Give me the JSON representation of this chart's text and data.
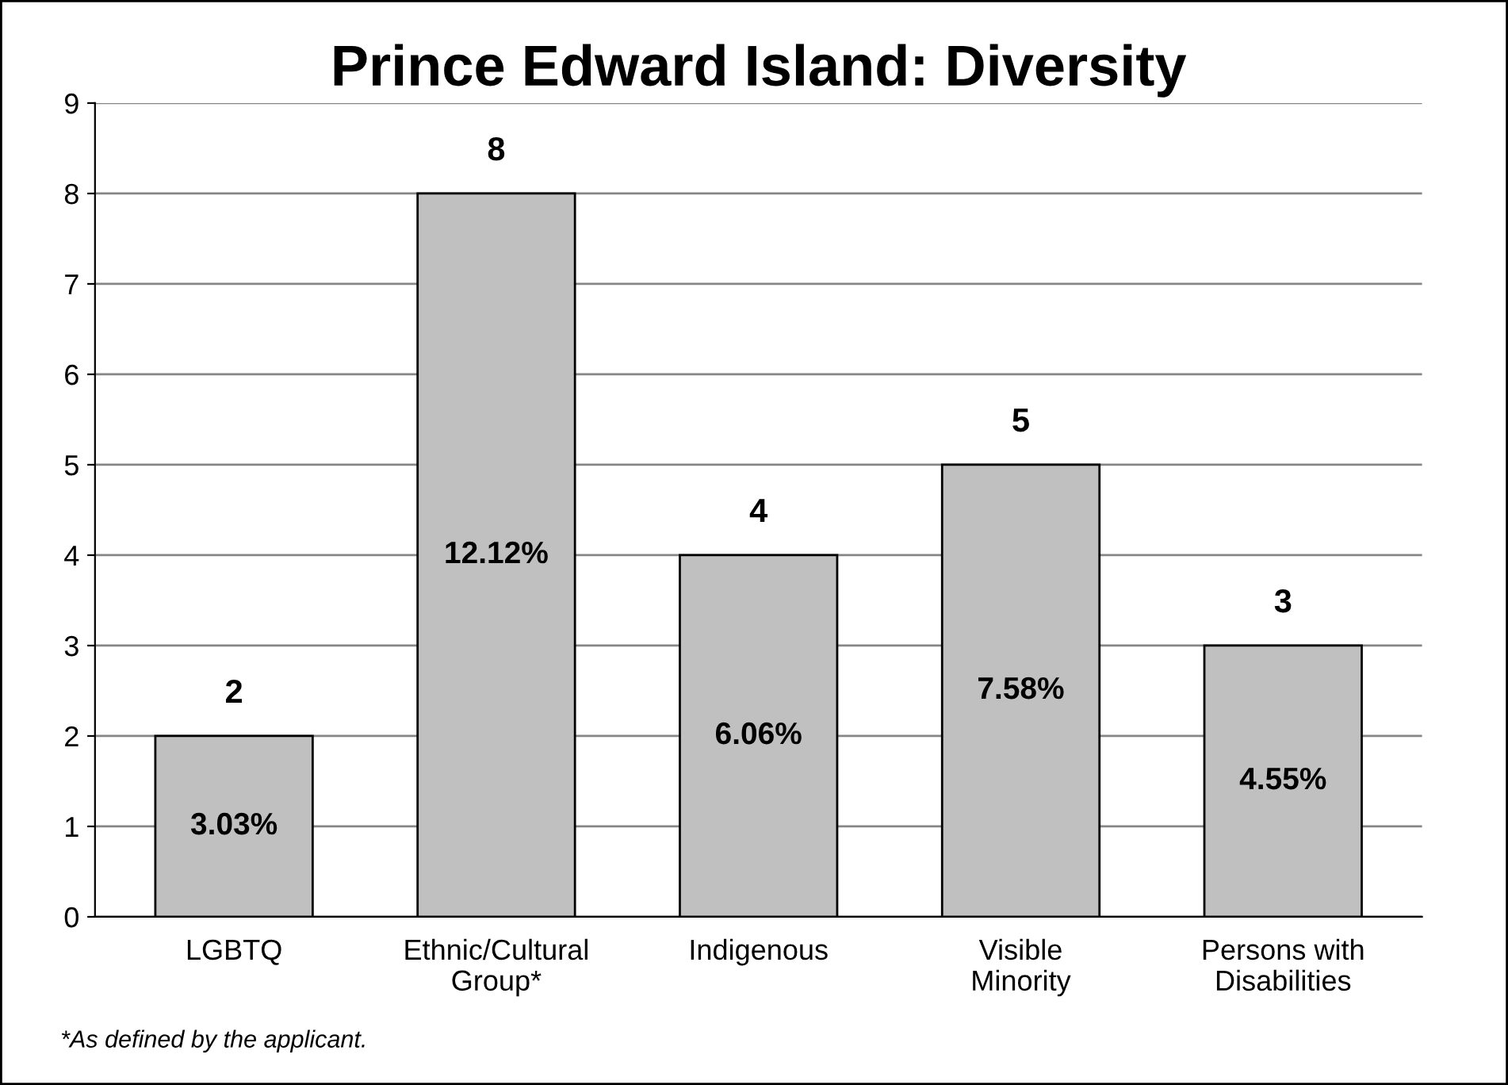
{
  "chart_data": {
    "type": "bar",
    "title": "Prince Edward Island: Diversity",
    "categories": [
      "LGBTQ",
      "Ethnic/Cultural\nGroup*",
      "Indigenous",
      "Visible\nMinority",
      "Persons with\nDisabilities"
    ],
    "values": [
      2,
      8,
      4,
      5,
      3
    ],
    "color": "#c0c0c0",
    "data_labels": true,
    "ylim": [
      0,
      9
    ],
    "yticks": [
      0,
      1,
      2,
      3,
      4,
      5,
      6,
      7,
      8,
      9
    ],
    "grid": "y",
    "annotations": [
      "3.03%",
      "12.12%",
      "6.06%",
      "7.58%",
      "4.55%",
      "*As defined by the applicant."
    ]
  }
}
